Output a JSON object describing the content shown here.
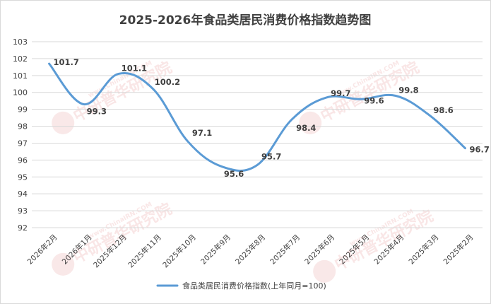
{
  "chart_data": {
    "type": "line",
    "title": "2025-2026年食品类居民消费价格指数趋势图",
    "categories": [
      "2026年2月",
      "2026年1月",
      "2025年12月",
      "2025年11月",
      "2025年10月",
      "2025年9月",
      "2025年8月",
      "2025年7月",
      "2025年6月",
      "2025年5月",
      "2025年4月",
      "2025年3月",
      "2025年2月"
    ],
    "series": [
      {
        "name": "食品类居民消费价格指数(上年同月=100)",
        "color": "#5b9bd5",
        "values": [
          101.7,
          99.3,
          101.1,
          100.2,
          97.1,
          95.6,
          95.7,
          98.4,
          99.7,
          99.6,
          99.8,
          98.6,
          96.7
        ]
      }
    ],
    "data_labels": [
      "101.7",
      "99.3",
      "101.1",
      "100.2",
      "97.1",
      "95.6",
      "95.7",
      "98.4",
      "99.7",
      "99.6",
      "99.8",
      "98.6",
      "96.7"
    ],
    "ylim": [
      92,
      103
    ],
    "yticks": [
      "92",
      "93",
      "94",
      "95",
      "96",
      "97",
      "98",
      "99",
      "100",
      "101",
      "102",
      "103"
    ],
    "grid": true,
    "legend_position": "bottom",
    "smooth": true
  },
  "watermark": {
    "text": "中研普华研究院",
    "sub": "www.ChinaIRN.COM",
    "logo": "CIRN"
  }
}
